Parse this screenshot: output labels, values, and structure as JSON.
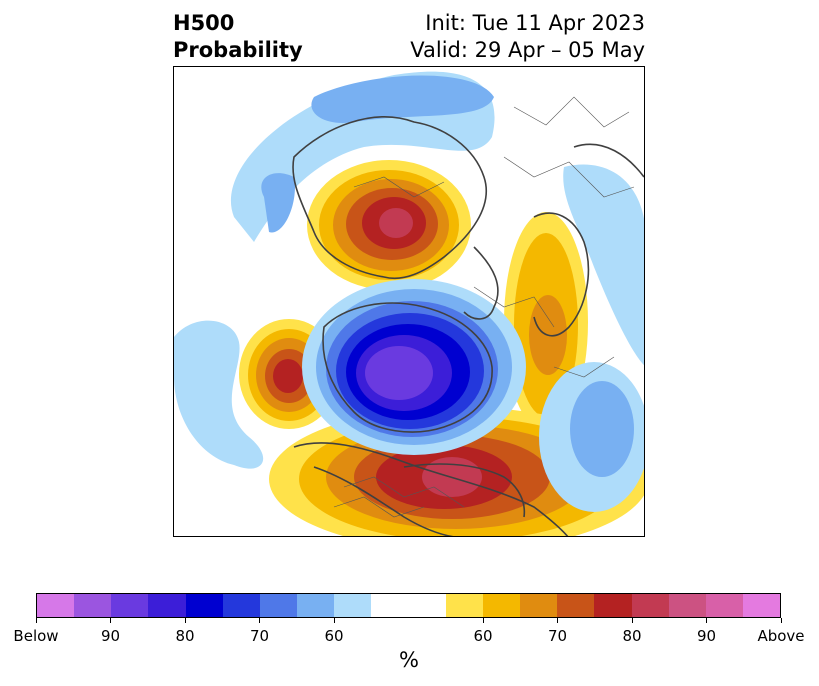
{
  "title": {
    "left_line1": "H500",
    "left_line2": "Probability",
    "init": "Init: Tue 11 Apr 2023",
    "valid": "Valid: 29 Apr – 05 May"
  },
  "map": {
    "projection": "north-polar stereographic",
    "field": "500-hPa height anomaly probability"
  },
  "colorbar": {
    "unit": "%",
    "colors": [
      "#d678e8",
      "#9b55e0",
      "#6a3ae0",
      "#3c1ed8",
      "#0000d0",
      "#2438dc",
      "#4f78e8",
      "#78b0f2",
      "#aedcfa",
      "#ffffff",
      "#ffffff",
      "#ffe24a",
      "#f4b800",
      "#e08c10",
      "#c85418",
      "#b42222",
      "#c23a52",
      "#cc5282",
      "#d860a8",
      "#e47ae0"
    ],
    "tick_labels": [
      "Below",
      "90",
      "80",
      "70",
      "60",
      "60",
      "70",
      "80",
      "90",
      "Above"
    ]
  }
}
